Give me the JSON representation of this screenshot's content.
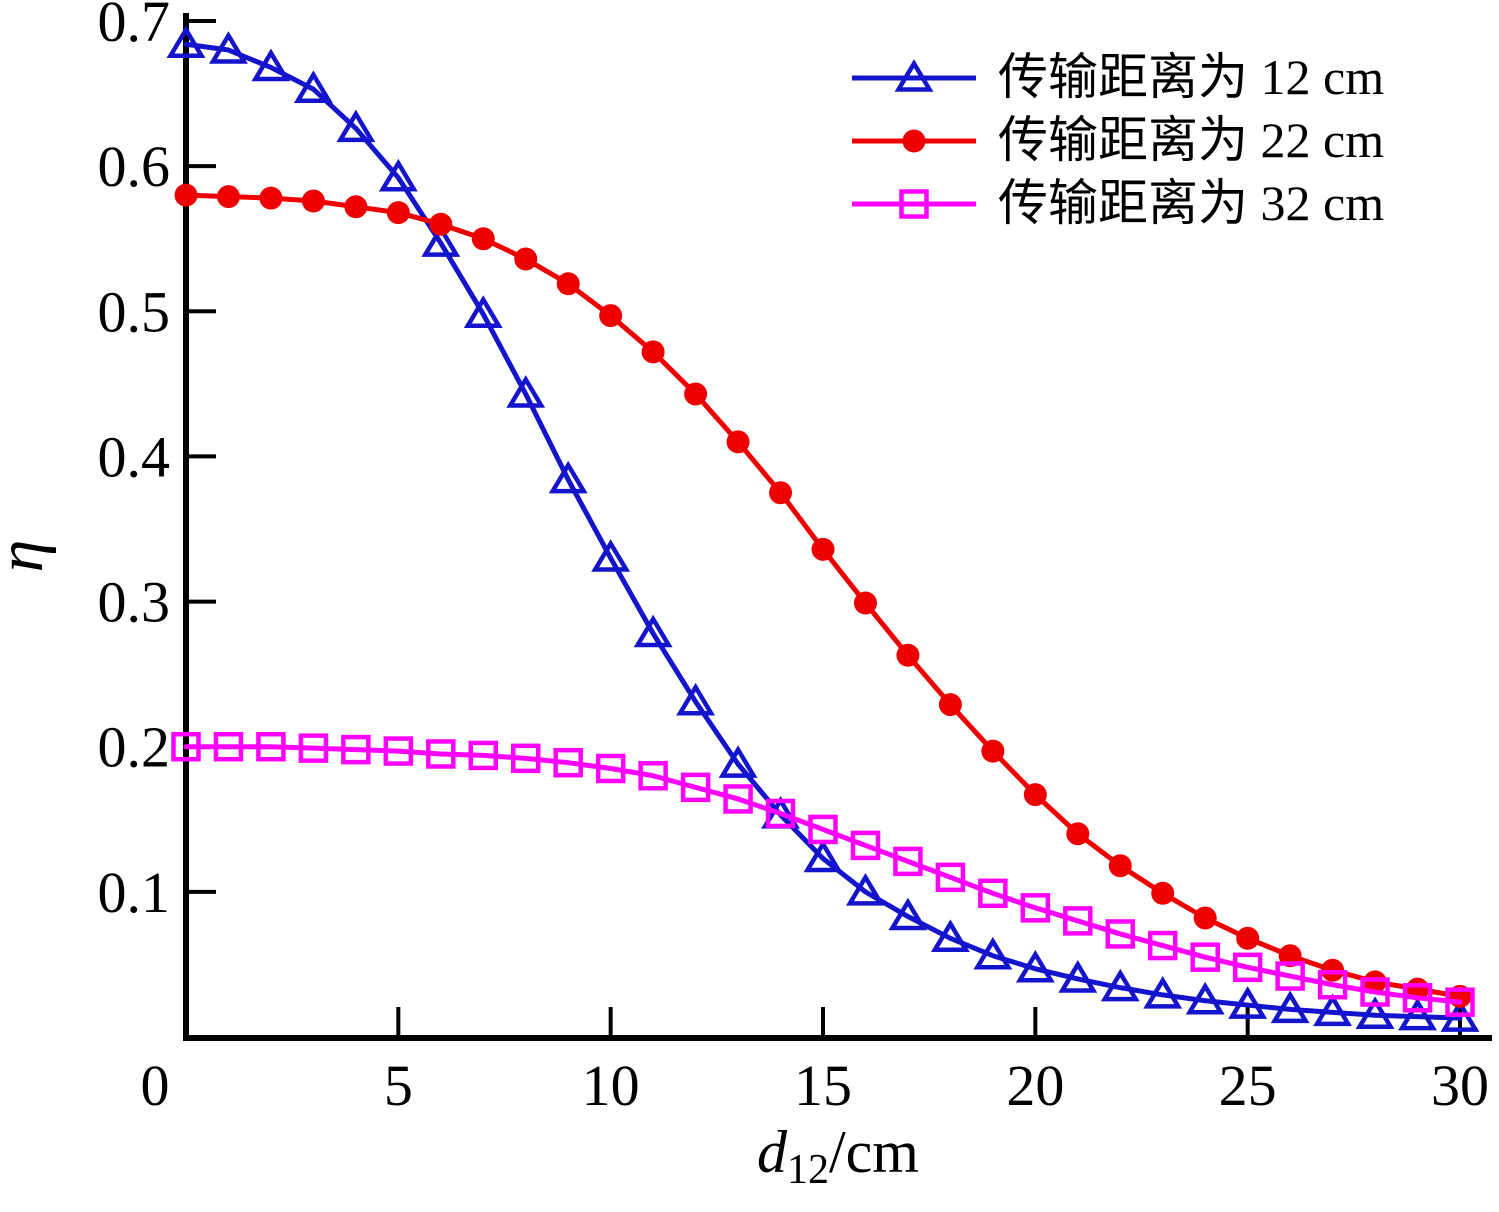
{
  "figure": {
    "background": "#ffffff",
    "axis_color": "#000000",
    "text_color": "#000000"
  },
  "labels": {
    "ylabel": "η",
    "xlabel_d": "d",
    "xlabel_sub": "12",
    "xlabel_unit": "/cm",
    "origin_label": "0"
  },
  "chart_data": {
    "type": "line",
    "title": "",
    "xlabel": "d12/cm",
    "ylabel": "η",
    "xlim": [
      0,
      30
    ],
    "ylim": [
      0,
      0.7
    ],
    "grid": false,
    "legend_position": "top-right",
    "xticks": {
      "values": [
        5,
        10,
        15,
        20,
        25,
        30
      ],
      "labels": [
        "5",
        "10",
        "15",
        "20",
        "25",
        "30"
      ]
    },
    "yticks": {
      "values": [
        0.1,
        0.2,
        0.3,
        0.4,
        0.5,
        0.6,
        0.7
      ],
      "labels": [
        "0.1",
        "0.2",
        "0.3",
        "0.4",
        "0.5",
        "0.6",
        "0.7"
      ]
    },
    "x": [
      0,
      1,
      2,
      3,
      4,
      5,
      6,
      7,
      8,
      9,
      10,
      11,
      12,
      13,
      14,
      15,
      16,
      17,
      18,
      19,
      20,
      21,
      22,
      23,
      24,
      25,
      26,
      27,
      28,
      29,
      30
    ],
    "series": [
      {
        "name": "传输距离为 12 cm",
        "color": "#1414cc",
        "marker": "triangle-open",
        "values": [
          0.684,
          0.68,
          0.668,
          0.653,
          0.626,
          0.592,
          0.547,
          0.498,
          0.443,
          0.384,
          0.33,
          0.278,
          0.231,
          0.188,
          0.153,
          0.123,
          0.1,
          0.083,
          0.068,
          0.056,
          0.047,
          0.04,
          0.034,
          0.029,
          0.025,
          0.022,
          0.019,
          0.017,
          0.015,
          0.014,
          0.013
        ]
      },
      {
        "name": "传输距离为 22 cm",
        "color": "#ee0000",
        "marker": "circle-filled",
        "values": [
          0.58,
          0.579,
          0.578,
          0.576,
          0.572,
          0.568,
          0.56,
          0.55,
          0.536,
          0.519,
          0.497,
          0.472,
          0.443,
          0.41,
          0.375,
          0.336,
          0.299,
          0.263,
          0.229,
          0.197,
          0.167,
          0.14,
          0.118,
          0.099,
          0.082,
          0.068,
          0.056,
          0.046,
          0.038,
          0.033,
          0.028
        ]
      },
      {
        "name": "传输距离为 32 cm",
        "color": "#ff00ff",
        "marker": "square-open",
        "values": [
          0.2,
          0.2,
          0.2,
          0.199,
          0.198,
          0.197,
          0.195,
          0.194,
          0.192,
          0.189,
          0.185,
          0.18,
          0.172,
          0.164,
          0.154,
          0.143,
          0.132,
          0.121,
          0.11,
          0.099,
          0.089,
          0.08,
          0.071,
          0.063,
          0.055,
          0.048,
          0.042,
          0.036,
          0.031,
          0.027,
          0.024
        ]
      }
    ]
  }
}
